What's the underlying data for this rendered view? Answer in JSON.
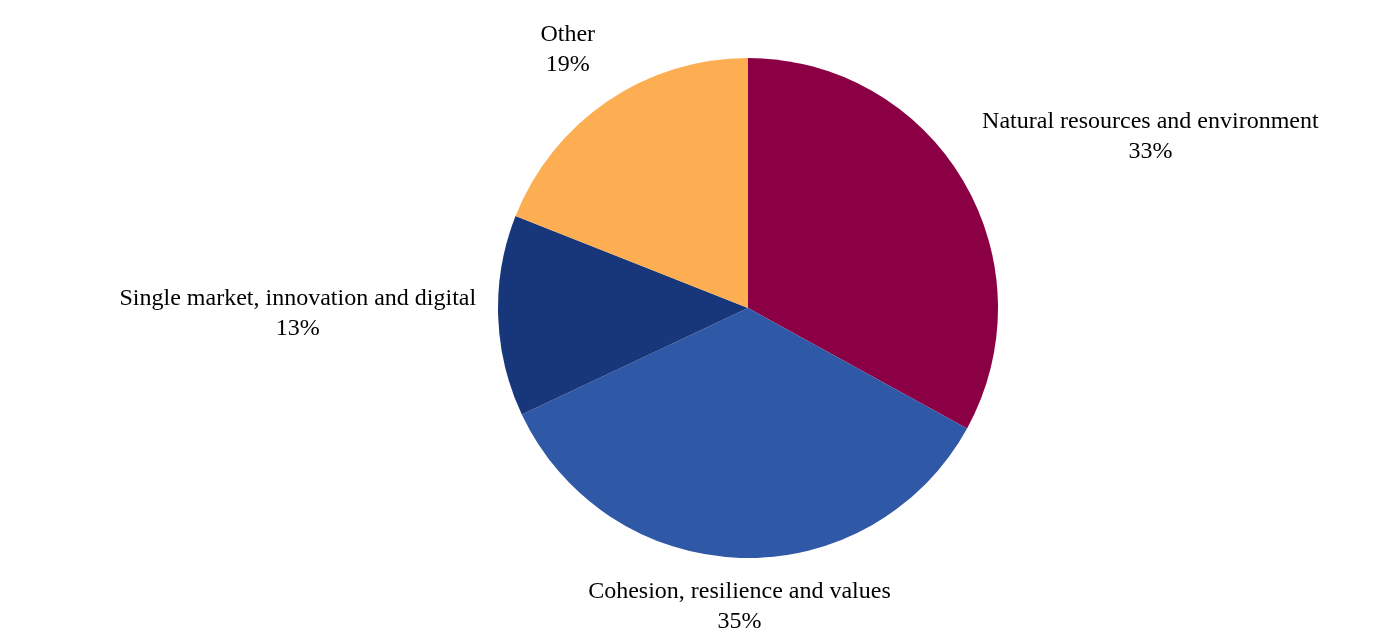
{
  "chart_data": {
    "type": "pie",
    "categories": [
      "Natural resources and environment",
      "Cohesion, resilience and values",
      "Single market, innovation and digital",
      "Other"
    ],
    "values": [
      33,
      35,
      13,
      19
    ],
    "value_labels": [
      "33%",
      "35%",
      "13%",
      "19%"
    ],
    "colors": [
      "#8b0045",
      "#2f58a6",
      "#17377a",
      "#fdae53"
    ],
    "legend": false
  }
}
